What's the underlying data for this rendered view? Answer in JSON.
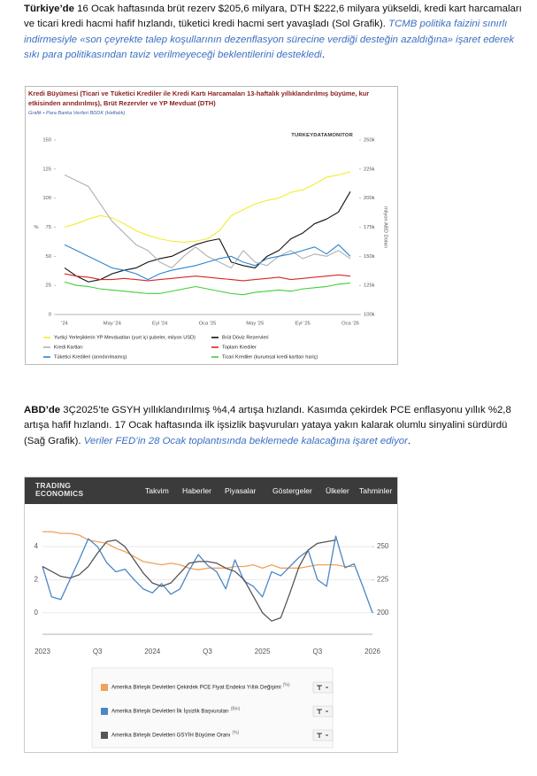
{
  "paragraphs": [
    {
      "lead": "Türkiye’de",
      "text": " 16 Ocak haftasında brüt rezerv $205,6 milyara, DTH $222,6 milyara yükseldi, kredi kart harcamaları ve ticari kredi hacmi hafif hızlandı, tüketici kredi hacmi sert yavaşladı (Sol Grafik). ",
      "emphasis": "TCMB politika faizini sınırlı indirmesiyle «son çeyrekte talep koşullarının dezenflasyon sürecine verdiği desteğin azaldığına» işaret ederek sıkı para politikasından taviz verilmeyeceği beklentilerini destekledi",
      "end": "."
    },
    {
      "lead": "ABD’de",
      "text": " 3Ç2025’te GSYH yıllıklandırılmış %4,4 artışa hızlandı. Kasımda çekirdek PCE enflasyonu yıllık %2,8 artışa hafif hızlandı. 17 Ocak haftasında ilk işsizlik başvuruları yataya yakın kalarak olumlu sinyalini sürdürdü (Sağ Grafik). ",
      "emphasis": "Veriler FED’in 28 Ocak toplantısında beklemede kalacağına işaret ediyor",
      "end": "."
    }
  ],
  "site_header": {
    "logo_top": "TRADING",
    "logo_bottom": "ECONOMICS",
    "nav": [
      "Takvim",
      "Haberler",
      "Piyasalar",
      "Göstergeler",
      "Ülkeler",
      "Tahminler"
    ]
  },
  "chart_data": [
    {
      "type": "line",
      "title": "Kredi Büyümesi (Ticari ve Tüketici Krediler ile Kredi Kartı Harcamaları 13-haftalık yıllıklandırılmış büyüme, kur etkisinden arındırılmış), Brüt Rezervler ve YP Mevduat (DTH)",
      "subtitle": "Grafik • Para Banka Verileri BDDK (Haftalık)",
      "brand": "TURKEYDATAMONITOR",
      "ylabel": "%",
      "y2label": "milyon ABD Doları",
      "categories": [
        "'24",
        null,
        null,
        null,
        "May '24",
        null,
        null,
        null,
        "Eyl '24",
        null,
        null,
        null,
        "Oca '25",
        null,
        null,
        null,
        "May '25",
        null,
        null,
        null,
        "Eyl '25",
        null,
        null,
        null,
        "Oca '26"
      ],
      "series": [
        {
          "name": "Yurtiçi Yerleşiklerin YP Mevduatları (yurt içi şubeler, milyon USD)",
          "color": "#f2ec2e",
          "axis": "y2",
          "values": [
            175000,
            178000,
            182000,
            185000,
            183000,
            178000,
            172000,
            168000,
            165000,
            163000,
            162000,
            163000,
            165000,
            172000,
            185000,
            190000,
            195000,
            198000,
            200000,
            205000,
            207000,
            212000,
            218000,
            220000,
            222600
          ]
        },
        {
          "name": "Brüt Döviz Rezervleri",
          "color": "#111111",
          "axis": "y2",
          "values": [
            140000,
            133000,
            128000,
            130000,
            135000,
            138000,
            140000,
            145000,
            148000,
            150000,
            155000,
            160000,
            163000,
            165000,
            145000,
            142000,
            140000,
            150000,
            155000,
            165000,
            170000,
            178000,
            182000,
            188000,
            205600
          ]
        },
        {
          "name": "Kredi Kartları",
          "color": "#b0b0b0",
          "values": [
            120,
            115,
            110,
            95,
            80,
            70,
            60,
            55,
            45,
            40,
            50,
            58,
            50,
            45,
            40,
            55,
            45,
            42,
            50,
            55,
            48,
            52,
            50,
            55,
            48
          ]
        },
        {
          "name": "Toplam Krediler",
          "color": "#d62728",
          "values": [
            35,
            33,
            32,
            30,
            30,
            31,
            30,
            29,
            30,
            31,
            32,
            33,
            32,
            31,
            30,
            29,
            30,
            31,
            32,
            30,
            31,
            32,
            33,
            34,
            33
          ]
        },
        {
          "name": "Tüketici Kredileri (arındırılmamış)",
          "color": "#2f86d1",
          "values": [
            60,
            55,
            50,
            45,
            40,
            38,
            35,
            30,
            35,
            38,
            40,
            42,
            45,
            48,
            50,
            45,
            42,
            48,
            50,
            52,
            55,
            58,
            52,
            60,
            50
          ]
        },
        {
          "name": "Ticari Krediler (kurumsal kredi kartları hariç)",
          "color": "#3fcf3a",
          "values": [
            28,
            25,
            24,
            22,
            21,
            20,
            19,
            18,
            18,
            20,
            22,
            24,
            22,
            20,
            18,
            17,
            19,
            20,
            21,
            20,
            22,
            23,
            24,
            26,
            27
          ]
        }
      ],
      "ylim": [
        0,
        150
      ],
      "yticks": [
        0,
        25,
        50,
        75,
        100,
        125,
        150
      ],
      "y2lim": [
        100000,
        250000
      ],
      "y2ticks": [
        {
          "value": 100000,
          "label": "100k"
        },
        {
          "value": 125000,
          "label": "125k"
        },
        {
          "value": 150000,
          "label": "150k"
        },
        {
          "value": 175000,
          "label": "175k"
        },
        {
          "value": 200000,
          "label": "200k"
        },
        {
          "value": 225000,
          "label": "225k"
        },
        {
          "value": 250000,
          "label": "250k"
        }
      ],
      "grid": false,
      "legend": "bottom"
    },
    {
      "type": "line",
      "categories": [
        "2023",
        null,
        null,
        null,
        null,
        null,
        "Q3",
        null,
        null,
        null,
        null,
        null,
        "2024",
        null,
        null,
        null,
        null,
        null,
        "Q3",
        null,
        null,
        null,
        null,
        null,
        "2025",
        null,
        null,
        null,
        null,
        null,
        "Q3",
        null,
        null,
        null,
        null,
        null,
        "2026"
      ],
      "series": [
        {
          "name": "Amerika Birleşik Devletleri Çekirdek PCE Fiyat Endeksi Yıllık Değişimi",
          "unit": "(%)",
          "color": "#f0a25a",
          "values": [
            4.9,
            4.9,
            4.8,
            4.8,
            4.7,
            4.4,
            4.3,
            4.2,
            3.9,
            3.7,
            3.4,
            3.1,
            3.0,
            2.9,
            3.0,
            2.9,
            2.7,
            2.6,
            2.7,
            2.7,
            2.7,
            2.8,
            2.8,
            2.9,
            2.7,
            2.9,
            2.7,
            2.7,
            2.7,
            2.8,
            2.9,
            2.9,
            2.9,
            2.8,
            2.8,
            null,
            null
          ]
        },
        {
          "name": "Amerika Birleşik Devletleri İlk İşsizlik Başvuruları",
          "unit": "(Bin)",
          "color": "#4a86c8",
          "axis": "y2",
          "values": [
            235,
            212,
            210,
            225,
            240,
            256,
            250,
            238,
            231,
            233,
            225,
            218,
            215,
            222,
            214,
            218,
            232,
            244,
            236,
            231,
            218,
            240,
            224,
            220,
            212,
            231,
            228,
            235,
            242,
            247,
            225,
            220,
            258,
            234,
            237,
            219,
            200
          ]
        },
        {
          "name": "Amerika Birleşik Devletleri GSYİH Büyüme Oranı",
          "unit": "(%)",
          "color": "#555555",
          "values": [
            2.8,
            2.5,
            2.2,
            2.1,
            2.3,
            2.8,
            3.6,
            4.3,
            4.4,
            4.0,
            3.2,
            2.4,
            1.8,
            1.6,
            1.8,
            2.4,
            3.0,
            3.1,
            3.1,
            3.0,
            2.7,
            2.5,
            2.0,
            1.0,
            0.0,
            -0.5,
            -0.3,
            1.2,
            2.8,
            3.8,
            4.2,
            4.3,
            4.4,
            null,
            null,
            null,
            null
          ]
        }
      ],
      "ylim": [
        -1.3,
        6.2
      ],
      "yticks": [
        0,
        2,
        4
      ],
      "y2lim": [
        183.75,
        277.5
      ],
      "y2ticks": [
        200,
        225,
        250
      ],
      "grid": true,
      "legend": "bottom"
    }
  ]
}
